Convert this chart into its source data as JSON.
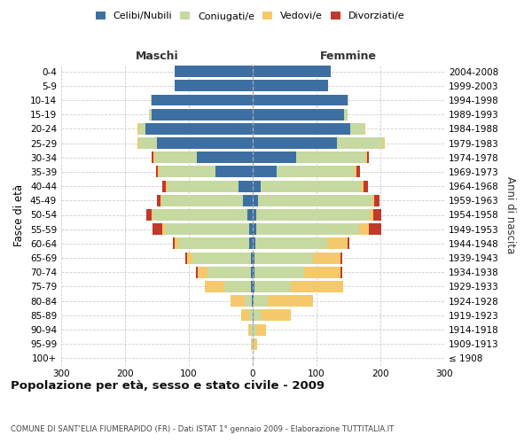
{
  "age_groups": [
    "100+",
    "95-99",
    "90-94",
    "85-89",
    "80-84",
    "75-79",
    "70-74",
    "65-69",
    "60-64",
    "55-59",
    "50-54",
    "45-49",
    "40-44",
    "35-39",
    "30-34",
    "25-29",
    "20-24",
    "15-19",
    "10-14",
    "5-9",
    "0-4"
  ],
  "birth_years": [
    "≤ 1908",
    "1909-1913",
    "1914-1918",
    "1919-1923",
    "1924-1928",
    "1929-1933",
    "1934-1938",
    "1939-1943",
    "1944-1948",
    "1949-1953",
    "1954-1958",
    "1959-1963",
    "1964-1968",
    "1969-1973",
    "1974-1978",
    "1979-1983",
    "1984-1988",
    "1989-1993",
    "1994-1998",
    "1999-2003",
    "2004-2008"
  ],
  "male_celibi": [
    0,
    0,
    0,
    0,
    1,
    3,
    3,
    3,
    5,
    6,
    9,
    15,
    22,
    58,
    88,
    150,
    168,
    158,
    158,
    122,
    122
  ],
  "male_coniugati": [
    0,
    1,
    3,
    6,
    12,
    42,
    68,
    92,
    112,
    132,
    148,
    128,
    112,
    88,
    65,
    28,
    10,
    4,
    2,
    0,
    0
  ],
  "male_vedovi": [
    0,
    2,
    4,
    12,
    22,
    30,
    15,
    8,
    5,
    3,
    2,
    2,
    2,
    2,
    2,
    3,
    2,
    0,
    0,
    0,
    0
  ],
  "male_divorziati": [
    0,
    0,
    0,
    0,
    0,
    0,
    3,
    3,
    3,
    16,
    8,
    5,
    5,
    3,
    3,
    0,
    0,
    0,
    0,
    0,
    0
  ],
  "female_nubili": [
    0,
    0,
    0,
    1,
    1,
    3,
    3,
    3,
    4,
    5,
    6,
    9,
    12,
    38,
    68,
    132,
    153,
    143,
    148,
    118,
    122
  ],
  "female_coniugate": [
    0,
    2,
    5,
    12,
    22,
    57,
    77,
    92,
    112,
    162,
    178,
    178,
    158,
    122,
    108,
    72,
    22,
    5,
    2,
    0,
    0
  ],
  "female_vedove": [
    0,
    5,
    16,
    47,
    72,
    82,
    57,
    42,
    32,
    15,
    5,
    3,
    3,
    3,
    3,
    3,
    2,
    0,
    0,
    0,
    0
  ],
  "female_divorziate": [
    0,
    0,
    0,
    0,
    0,
    0,
    3,
    3,
    3,
    19,
    13,
    8,
    8,
    5,
    3,
    0,
    0,
    0,
    0,
    0,
    0
  ],
  "color_celibi": "#3e6fa3",
  "color_coniugati": "#c5d9a0",
  "color_vedovi": "#f5c96b",
  "color_divorziati": "#c0392b",
  "xlim": 300,
  "title": "Popolazione per età, sesso e stato civile - 2009",
  "subtitle": "COMUNE DI SANT'ELIA FIUMERAPIDO (FR) - Dati ISTAT 1° gennaio 2009 - Elaborazione TUTTITALIA.IT",
  "ylabel_left": "Fasce di età",
  "ylabel_right": "Anni di nascita",
  "label_maschi": "Maschi",
  "label_femmine": "Femmine",
  "legend_labels": [
    "Celibi/Nubili",
    "Coniugati/e",
    "Vedovi/e",
    "Divorziati/e"
  ],
  "xtick_labels": [
    "300",
    "200",
    "100",
    "0",
    "100",
    "200",
    "300"
  ]
}
